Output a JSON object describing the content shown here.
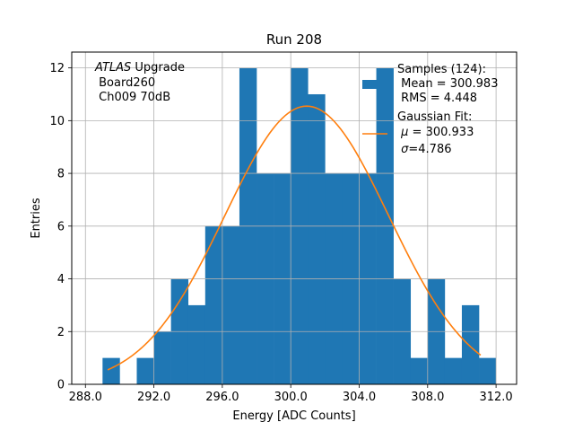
{
  "chart_data": {
    "type": "bar",
    "title": "Run 208",
    "xlabel": "Energy [ADC Counts]",
    "ylabel": "Entries",
    "xlim": [
      287.2,
      313.2
    ],
    "ylim": [
      0,
      12.6
    ],
    "xticks": [
      288.0,
      292.0,
      296.0,
      300.0,
      304.0,
      308.0,
      312.0
    ],
    "xtick_labels": [
      "288.0",
      "292.0",
      "296.0",
      "300.0",
      "304.0",
      "308.0",
      "312.0"
    ],
    "yticks": [
      0,
      2,
      4,
      6,
      8,
      10,
      12
    ],
    "ytick_labels": [
      "0",
      "2",
      "4",
      "6",
      "8",
      "10",
      "12"
    ],
    "grid": true,
    "bins": [
      {
        "x0": 289,
        "x1": 290,
        "value": 1
      },
      {
        "x0": 290,
        "x1": 291,
        "value": 0
      },
      {
        "x0": 291,
        "x1": 292,
        "value": 1
      },
      {
        "x0": 292,
        "x1": 293,
        "value": 2
      },
      {
        "x0": 293,
        "x1": 294,
        "value": 4
      },
      {
        "x0": 294,
        "x1": 295,
        "value": 3
      },
      {
        "x0": 295,
        "x1": 296,
        "value": 6
      },
      {
        "x0": 296,
        "x1": 297,
        "value": 6
      },
      {
        "x0": 297,
        "x1": 298,
        "value": 12
      },
      {
        "x0": 298,
        "x1": 299,
        "value": 8
      },
      {
        "x0": 299,
        "x1": 300,
        "value": 8
      },
      {
        "x0": 300,
        "x1": 301,
        "value": 12
      },
      {
        "x0": 301,
        "x1": 302,
        "value": 11
      },
      {
        "x0": 302,
        "x1": 303,
        "value": 8
      },
      {
        "x0": 303,
        "x1": 304,
        "value": 8
      },
      {
        "x0": 304,
        "x1": 305,
        "value": 8
      },
      {
        "x0": 305,
        "x1": 306,
        "value": 12
      },
      {
        "x0": 306,
        "x1": 307,
        "value": 4
      },
      {
        "x0": 307,
        "x1": 308,
        "value": 1
      },
      {
        "x0": 308,
        "x1": 309,
        "value": 4
      },
      {
        "x0": 309,
        "x1": 310,
        "value": 1
      },
      {
        "x0": 310,
        "x1": 311,
        "value": 3
      },
      {
        "x0": 311,
        "x1": 312,
        "value": 1
      }
    ],
    "fit": {
      "type": "gaussian",
      "mu": 300.933,
      "sigma": 4.786,
      "amplitude": 10.55,
      "x_range": [
        289.3,
        311.1
      ]
    },
    "series_colors": {
      "histogram": "#1f77b4",
      "fit": "#ff7f0e"
    },
    "annotations": {
      "atlas_italic": "ATLAS",
      "atlas_rest": " Upgrade",
      "board": " Board260",
      "channel": " Ch009 70dB"
    },
    "legend": {
      "placement": "top-right",
      "samples_title": "Samples (124):",
      "samples_mean": " Mean = 300.983",
      "samples_rms": " RMS = 4.448",
      "fit_title": "Gaussian Fit:",
      "fit_mu_symbol": "μ",
      "fit_mu_value": " = 300.933",
      "fit_sigma_symbol": "σ",
      "fit_sigma_value": "=4.786"
    }
  }
}
